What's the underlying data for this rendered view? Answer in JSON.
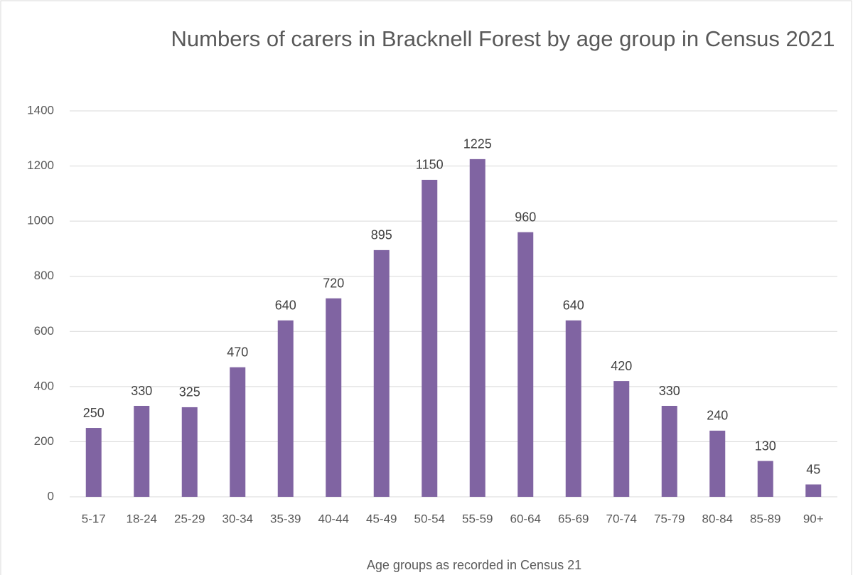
{
  "chart_data": {
    "type": "bar",
    "title": "Numbers of carers in Bracknell Forest by age group in Census 2021",
    "x_label": "Age groups as recorded in Census 21",
    "categories": [
      "5-17",
      "18-24",
      "25-29",
      "30-34",
      "35-39",
      "40-44",
      "45-49",
      "50-54",
      "55-59",
      "60-64",
      "65-69",
      "70-74",
      "75-79",
      "80-84",
      "85-89",
      "90+"
    ],
    "values": [
      250,
      330,
      325,
      470,
      640,
      720,
      895,
      1150,
      1225,
      960,
      640,
      420,
      330,
      240,
      130,
      45
    ],
    "color": "#8064a2",
    "ylim": [
      0,
      1400
    ],
    "yticks": [
      0,
      200,
      400,
      600,
      800,
      1000,
      1200,
      1400
    ],
    "grid": true
  }
}
